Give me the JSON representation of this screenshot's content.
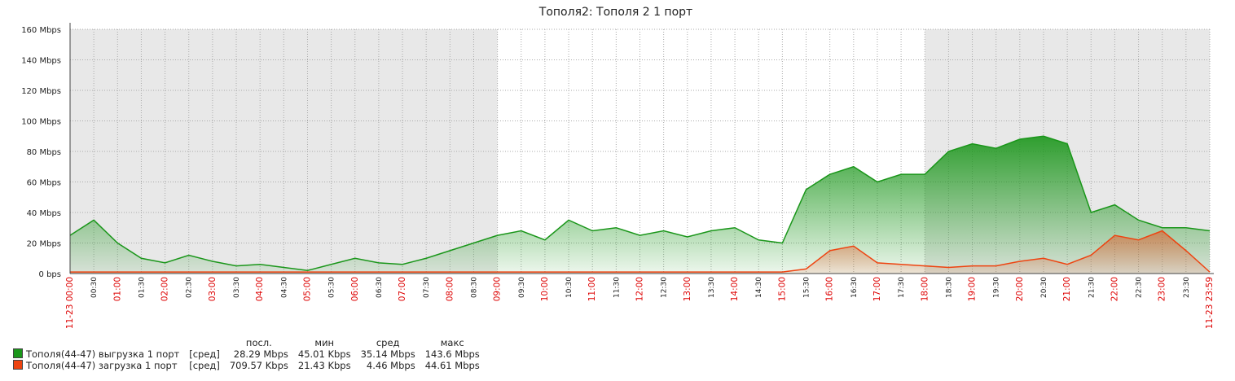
{
  "chart_data": {
    "type": "area-line",
    "title": "Тополя2: Тополя 2  1 порт",
    "categories": [
      "11-23 00:00",
      "00:30",
      "01:00",
      "01:30",
      "02:00",
      "02:30",
      "03:00",
      "03:30",
      "04:00",
      "04:30",
      "05:00",
      "05:30",
      "06:00",
      "06:30",
      "07:00",
      "07:30",
      "08:00",
      "08:30",
      "09:00",
      "09:30",
      "10:00",
      "10:30",
      "11:00",
      "11:30",
      "12:00",
      "12:30",
      "13:00",
      "13:30",
      "14:00",
      "14:30",
      "15:00",
      "15:30",
      "16:00",
      "16:30",
      "17:00",
      "17:30",
      "18:00",
      "18:30",
      "19:00",
      "19:30",
      "20:00",
      "20:30",
      "21:00",
      "21:30",
      "22:00",
      "22:30",
      "23:00",
      "23:30",
      "11-23 23:59"
    ],
    "series": [
      {
        "name": "Тополя(44-47) выгрузка 1 порт",
        "color": "#1a961a",
        "values": [
          25,
          35,
          20,
          10,
          7,
          12,
          8,
          5,
          6,
          4,
          2,
          6,
          10,
          7,
          6,
          10,
          15,
          20,
          25,
          28,
          22,
          35,
          28,
          30,
          25,
          28,
          24,
          28,
          30,
          22,
          20,
          55,
          65,
          70,
          60,
          65,
          65,
          80,
          85,
          82,
          88,
          90,
          85,
          40,
          45,
          35,
          30,
          30,
          28
        ]
      },
      {
        "name": "Тополя(44-47) загрузка 1 порт",
        "color": "#ee4411",
        "values": [
          1,
          1,
          1,
          1,
          1,
          1,
          1,
          1,
          1,
          1,
          1,
          1,
          1,
          1,
          1,
          1,
          1,
          1,
          1,
          1,
          1,
          1,
          1,
          1,
          1,
          1,
          1,
          1,
          1,
          1,
          1,
          3,
          15,
          18,
          7,
          6,
          5,
          4,
          5,
          5,
          8,
          10,
          6,
          12,
          25,
          22,
          28,
          15,
          1
        ]
      }
    ],
    "ylim": [
      0,
      160
    ],
    "yticks": [
      {
        "value": 0,
        "label": "0 bps"
      },
      {
        "value": 20,
        "label": "20 Mbps"
      },
      {
        "value": 40,
        "label": "40 Mbps"
      },
      {
        "value": 60,
        "label": "60 Mbps"
      },
      {
        "value": 80,
        "label": "80 Mbps"
      },
      {
        "value": 100,
        "label": "100 Mbps"
      },
      {
        "value": 120,
        "label": "120 Mbps"
      },
      {
        "value": 140,
        "label": "140 Mbps"
      },
      {
        "value": 160,
        "label": "160 Mbps"
      }
    ],
    "grid": true,
    "legend_table": {
      "headers": [
        "посл.",
        "мин",
        "сред",
        "макс"
      ],
      "rows": [
        [
          "[сред]",
          "28.29 Mbps",
          "45.01 Kbps",
          "35.14 Mbps",
          "143.6 Mbps"
        ],
        [
          "[сред]",
          "709.57 Kbps",
          "21.43 Kbps",
          "4.46 Mbps",
          "44.61 Mbps"
        ]
      ]
    }
  }
}
